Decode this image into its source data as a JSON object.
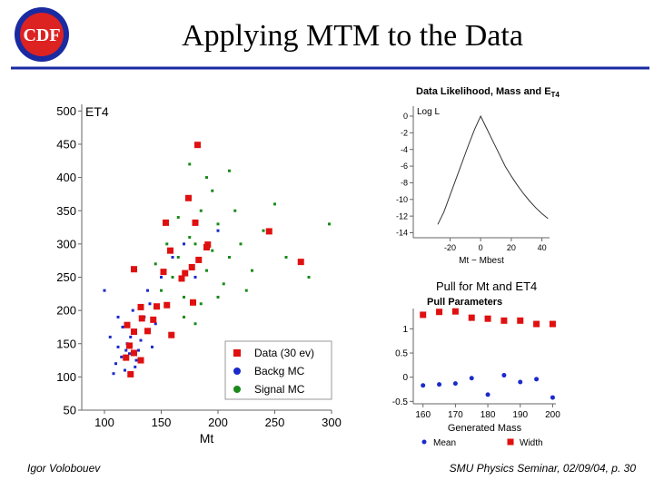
{
  "slide": {
    "title": "Applying MTM to the Data",
    "logo": "CDF",
    "author": "Igor Volobouev",
    "footer": "SMU Physics Seminar, 02/09/04, p. 30"
  },
  "chart_data": [
    {
      "type": "scatter",
      "xlabel": "Mt",
      "ylabel": "ET4",
      "xlim": [
        80,
        300
      ],
      "ylim": [
        50,
        510
      ],
      "xticks": [
        100,
        150,
        200,
        250,
        300
      ],
      "yticks": [
        50,
        100,
        150,
        200,
        250,
        300,
        350,
        400,
        450,
        500
      ],
      "legend": "lower right",
      "series": [
        {
          "name": "Signal MC",
          "color": "#1a8a1a",
          "marker": "dot",
          "x": [
            165,
            180,
            190,
            200,
            170,
            185,
            210,
            160,
            195,
            175,
            220,
            150,
            240,
            230,
            205,
            170,
            185,
            195,
            215,
            260,
            175,
            190,
            165,
            200,
            145,
            250,
            180,
            225,
            210,
            155,
            280,
            298
          ],
          "values": [
            280,
            300,
            260,
            330,
            220,
            350,
            280,
            250,
            380,
            420,
            300,
            230,
            320,
            260,
            240,
            190,
            210,
            290,
            350,
            280,
            310,
            400,
            340,
            220,
            270,
            360,
            180,
            230,
            410,
            300,
            250,
            330
          ]
        },
        {
          "name": "Backg MC",
          "color": "#1a2acc",
          "marker": "dot",
          "x": [
            115,
            120,
            110,
            125,
            130,
            118,
            135,
            112,
            128,
            140,
            105,
            122,
            150,
            116,
            132,
            145,
            108,
            125,
            160,
            138,
            170,
            112,
            180,
            119,
            127,
            200,
            155,
            100,
            123,
            142
          ],
          "values": [
            130,
            150,
            120,
            170,
            140,
            110,
            190,
            145,
            125,
            210,
            160,
            135,
            250,
            175,
            155,
            180,
            105,
            200,
            280,
            230,
            300,
            190,
            250,
            140,
            115,
            320,
            210,
            230,
            160,
            145
          ]
        },
        {
          "name": "Data (30 ev)",
          "color": "#e01010",
          "marker": "square",
          "x": [
            182,
            154,
            180,
            126,
            158,
            177,
            183,
            190,
            171,
            168,
            152,
            146,
            132,
            133,
            155,
            178,
            159,
            126,
            122,
            126,
            132,
            123,
            120,
            245,
            273,
            143,
            138,
            174,
            191,
            119
          ],
          "values": [
            449,
            332,
            332,
            262,
            290,
            265,
            276,
            295,
            256,
            248,
            258,
            206,
            205,
            188,
            208,
            212,
            163,
            168,
            147,
            136,
            125,
            104,
            178,
            319,
            273,
            186,
            169,
            369,
            299,
            129
          ]
        }
      ]
    },
    {
      "type": "line",
      "title": "Data Likelihood, Mass and E",
      "title_sub": "T4",
      "ylabel": "Log L",
      "xlabel": "Mt − Mbest",
      "xlim": [
        -44,
        45
      ],
      "ylim": [
        -14.6,
        1.2
      ],
      "xticks": [
        -20,
        0,
        20,
        40
      ],
      "yticks": [
        0,
        -2,
        -4,
        -6,
        -8,
        -10,
        -12,
        -14
      ],
      "x": [
        -28,
        -24,
        -20,
        -16,
        -12,
        -8,
        -4,
        0,
        4,
        8,
        12,
        16,
        20,
        24,
        28,
        32,
        36,
        40,
        44
      ],
      "values": [
        -13,
        -11.5,
        -9.5,
        -7.5,
        -5.5,
        -3.5,
        -1.6,
        0,
        -1.5,
        -3,
        -4.5,
        -6,
        -7.2,
        -8.3,
        -9.3,
        -10.2,
        -11,
        -11.7,
        -12.3
      ],
      "color": "#333333"
    },
    {
      "type": "scatter",
      "title": "Pull for Mt and ET4",
      "subtitle": "Pull Parameters",
      "xlabel": "Generated Mass",
      "xlim": [
        157,
        201
      ],
      "ylim": [
        -0.55,
        1.42
      ],
      "xticks": [
        160,
        170,
        180,
        190,
        200
      ],
      "yticks": [
        -0.5,
        0,
        0.5,
        1
      ],
      "legend": "bottom",
      "x": [
        160,
        165,
        170,
        175,
        180,
        185,
        190,
        195,
        200
      ],
      "series": [
        {
          "name": "Mean",
          "color": "#1a2acc",
          "marker": "circle",
          "values": [
            -0.17,
            -0.15,
            -0.13,
            -0.02,
            -0.36,
            0.04,
            -0.1,
            -0.04,
            -0.42
          ]
        },
        {
          "name": "Width",
          "color": "#e01010",
          "marker": "square",
          "values": [
            1.29,
            1.35,
            1.36,
            1.23,
            1.21,
            1.17,
            1.17,
            1.1,
            1.1
          ]
        }
      ]
    }
  ]
}
